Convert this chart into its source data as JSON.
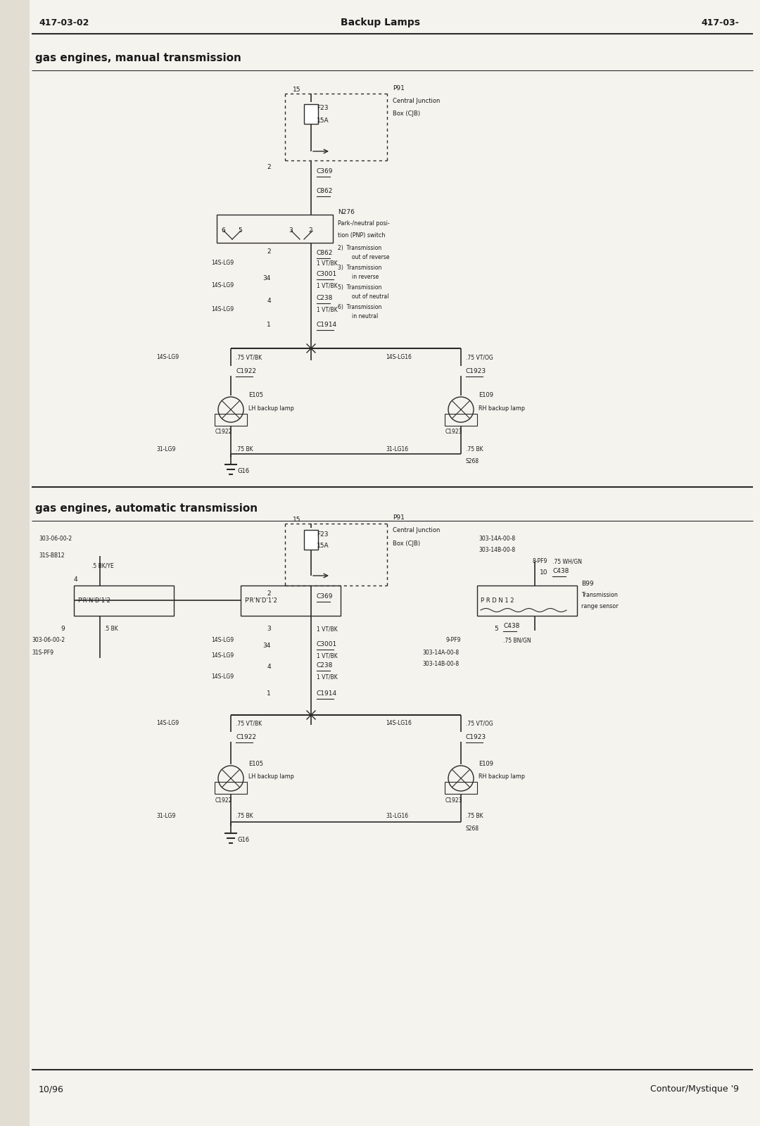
{
  "page_title": "Backup Lamps",
  "page_num_left": "417-03-02",
  "page_num_right": "417-03-",
  "footer_left": "10/96",
  "footer_right": "Contour/Mystique '9",
  "section1_title": "gas engines, manual transmission",
  "section2_title": "gas engines, automatic transmission",
  "bg_color": "#f5f3ee",
  "line_color": "#2a2a2a",
  "text_color": "#1a1a1a"
}
